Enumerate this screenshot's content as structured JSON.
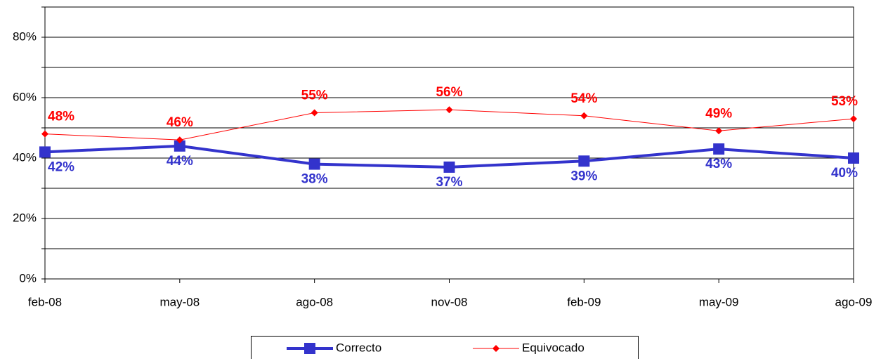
{
  "chart_data": {
    "type": "line",
    "categories": [
      "feb-08",
      "may-08",
      "ago-08",
      "nov-08",
      "feb-09",
      "may-09",
      "ago-09"
    ],
    "series": [
      {
        "name": "Correcto",
        "color": "#3333cc",
        "values": [
          42,
          44,
          38,
          37,
          39,
          43,
          40
        ],
        "value_labels": [
          "42%",
          "44%",
          "38%",
          "37%",
          "39%",
          "43%",
          "40%"
        ]
      },
      {
        "name": "Equivocado",
        "color": "#ff0000",
        "values": [
          48,
          46,
          55,
          56,
          54,
          49,
          53
        ],
        "value_labels": [
          "48%",
          "46%",
          "55%",
          "56%",
          "54%",
          "49%",
          "53%"
        ]
      }
    ],
    "ylim": [
      0,
      90
    ],
    "yticks": [
      {
        "value": 0,
        "label": "0%"
      },
      {
        "value": 10,
        "label": null
      },
      {
        "value": 20,
        "label": "20%"
      },
      {
        "value": 30,
        "label": null
      },
      {
        "value": 40,
        "label": "40%"
      },
      {
        "value": 50,
        "label": null
      },
      {
        "value": 60,
        "label": "60%"
      },
      {
        "value": 70,
        "label": null
      },
      {
        "value": 80,
        "label": "80%"
      },
      {
        "value": 90,
        "label": null
      }
    ],
    "grid": true,
    "legend": "bottom"
  }
}
